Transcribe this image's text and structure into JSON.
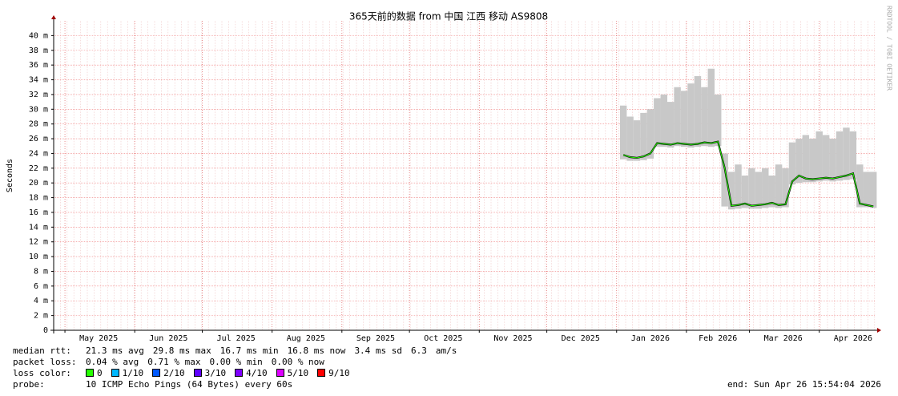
{
  "chart_data": {
    "type": "smoke",
    "title": "365天前的数据 from 中国 江西 移动 AS9808",
    "y_label": "Seconds",
    "watermark": "RRDTOOL / TOBI OETIKER",
    "xlim": [
      0,
      365
    ],
    "xticks": [
      {
        "value": 20,
        "label": "May 2025"
      },
      {
        "value": 51,
        "label": "Jun 2025"
      },
      {
        "value": 81,
        "label": "Jul 2025"
      },
      {
        "value": 112,
        "label": "Aug 2025"
      },
      {
        "value": 143,
        "label": "Sep 2025"
      },
      {
        "value": 173,
        "label": "Oct 2025"
      },
      {
        "value": 204,
        "label": "Nov 2025"
      },
      {
        "value": 234,
        "label": "Dec 2025"
      },
      {
        "value": 265,
        "label": "Jan 2026"
      },
      {
        "value": 295,
        "label": "Feb 2026"
      },
      {
        "value": 324,
        "label": "Mar 2026"
      },
      {
        "value": 355,
        "label": "Apr 2026"
      }
    ],
    "xgrid": [
      5,
      36,
      66,
      97,
      128,
      158,
      189,
      219,
      250,
      281,
      309,
      340
    ],
    "ylim": [
      0,
      0.042
    ],
    "yticks": [
      0,
      {
        "value": 0.002,
        "label": "2 m"
      },
      {
        "value": 0.004,
        "label": "4 m"
      },
      {
        "value": 0.006,
        "label": "6 m"
      },
      {
        "value": 0.008,
        "label": "8 m"
      },
      {
        "value": 0.01,
        "label": "10 m"
      },
      {
        "value": 0.012,
        "label": "12 m"
      },
      {
        "value": 0.014,
        "label": "14 m"
      },
      {
        "value": 0.016,
        "label": "16 m"
      },
      {
        "value": 0.018,
        "label": "18 m"
      },
      {
        "value": 0.02,
        "label": "20 m"
      },
      {
        "value": 0.022,
        "label": "22 m"
      },
      {
        "value": 0.024,
        "label": "24 m"
      },
      {
        "value": 0.026,
        "label": "26 m"
      },
      {
        "value": 0.028,
        "label": "28 m"
      },
      {
        "value": 0.03,
        "label": "30 m"
      },
      {
        "value": 0.032,
        "label": "32 m"
      },
      {
        "value": 0.034,
        "label": "34 m"
      },
      {
        "value": 0.036,
        "label": "36 m"
      },
      {
        "value": 0.038,
        "label": "38 m"
      },
      {
        "value": 0.04,
        "label": "40 m"
      }
    ],
    "grid": true,
    "smoke_color": "#c8c8c8",
    "x": [
      253,
      256,
      259,
      262,
      265,
      268,
      271,
      274,
      277,
      280,
      283,
      286,
      289,
      292,
      295,
      298,
      301,
      304,
      307,
      310,
      313,
      316,
      319,
      322,
      325,
      328,
      331,
      334,
      337,
      340,
      343,
      346,
      349,
      352,
      355,
      358,
      361,
      364
    ],
    "median": [
      0.0238,
      0.0235,
      0.0234,
      0.0236,
      0.024,
      0.0254,
      0.0253,
      0.0252,
      0.0254,
      0.0253,
      0.0252,
      0.0253,
      0.0255,
      0.0254,
      0.0256,
      0.022,
      0.0169,
      0.017,
      0.0172,
      0.0169,
      0.017,
      0.0171,
      0.0173,
      0.017,
      0.0171,
      0.0202,
      0.021,
      0.0206,
      0.0205,
      0.0206,
      0.0207,
      0.0206,
      0.0208,
      0.021,
      0.0213,
      0.0172,
      0.017,
      0.0168
    ],
    "min": [
      0.0232,
      0.023,
      0.023,
      0.0231,
      0.0233,
      0.0249,
      0.0249,
      0.0248,
      0.025,
      0.0249,
      0.0248,
      0.0249,
      0.025,
      0.0249,
      0.025,
      0.0168,
      0.0164,
      0.0165,
      0.0166,
      0.0165,
      0.0165,
      0.0166,
      0.0167,
      0.0166,
      0.0167,
      0.0198,
      0.02,
      0.0201,
      0.0201,
      0.0202,
      0.0203,
      0.0202,
      0.0203,
      0.0204,
      0.0205,
      0.0167,
      0.0167,
      0.0166
    ],
    "max": [
      0.0305,
      0.029,
      0.0285,
      0.0295,
      0.03,
      0.0315,
      0.032,
      0.031,
      0.033,
      0.0325,
      0.0335,
      0.0345,
      0.033,
      0.0355,
      0.032,
      0.024,
      0.0215,
      0.0225,
      0.021,
      0.022,
      0.0215,
      0.022,
      0.021,
      0.0225,
      0.022,
      0.0255,
      0.026,
      0.0265,
      0.026,
      0.027,
      0.0265,
      0.026,
      0.027,
      0.0275,
      0.027,
      0.0225,
      0.0215,
      0.0215
    ],
    "loss_colors": [
      {
        "label": "0",
        "color": "#26ff00"
      },
      {
        "label": "1/10",
        "color": "#00b8ff"
      },
      {
        "label": "2/10",
        "color": "#0059ff"
      },
      {
        "label": "3/10",
        "color": "#5e00ff"
      },
      {
        "label": "4/10",
        "color": "#7e00ff"
      },
      {
        "label": "5/10",
        "color": "#dd00ff"
      },
      {
        "label": "9/10",
        "color": "#ff0000"
      }
    ]
  },
  "stats": {
    "median_rtt": {
      "label": "median rtt:",
      "items": [
        "21.3 ms avg",
        "29.8 ms max",
        "16.7 ms min",
        "16.8 ms now",
        "3.4 ms sd",
        "6.3",
        "am/s"
      ]
    },
    "packet_loss": {
      "label": "packet loss:",
      "items": [
        "0.04 % avg",
        "0.71 % max",
        "0.00 % min",
        "0.00 % now"
      ]
    },
    "loss_color": {
      "label": "loss color:"
    },
    "probe": {
      "label": "probe:",
      "text": "10 ICMP Echo Pings (64 Bytes) every 60s"
    },
    "end": "end: Sun Apr 26 15:54:04 2026"
  }
}
